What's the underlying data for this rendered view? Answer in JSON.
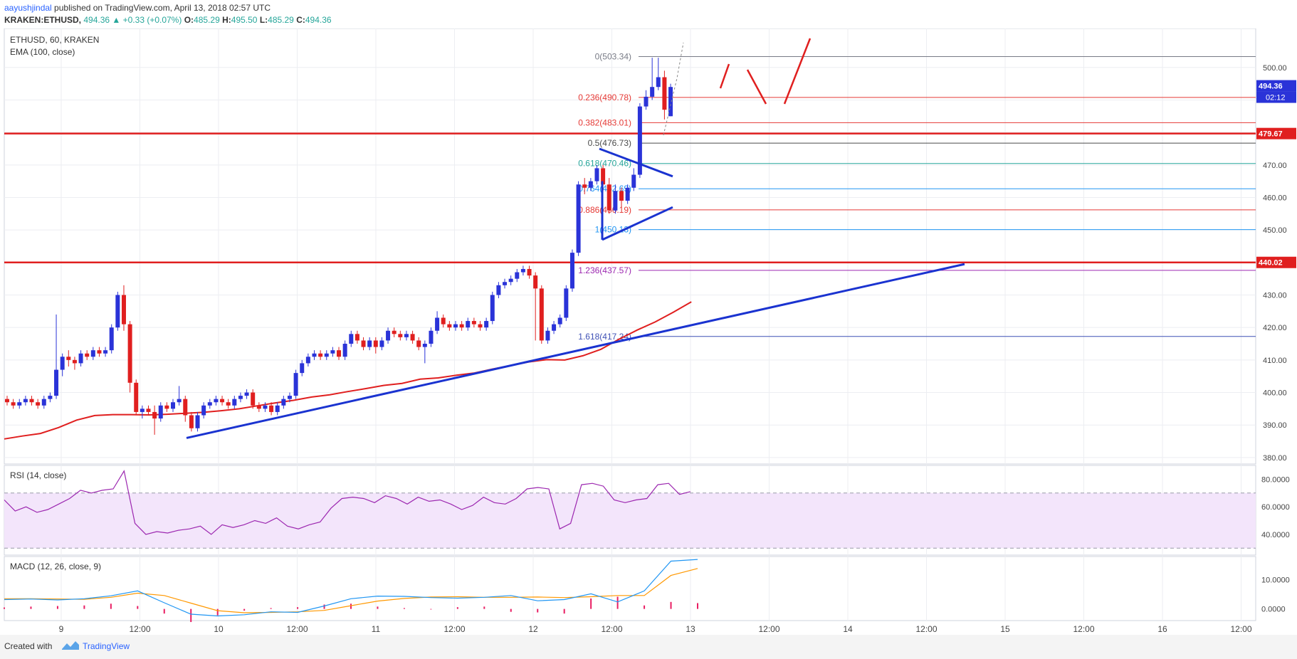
{
  "header": {
    "author": "aayushjindal",
    "published": " published on TradingView.com, April 13, 2018 02:57 UTC",
    "ticker": "KRAKEN:ETHUSD,",
    "price": "494.36",
    "change": "+0.33 (+0.07%)",
    "o_label": "O:",
    "o": "485.29",
    "h_label": "H:",
    "h": "495.50",
    "l_label": "L:",
    "l": "485.29",
    "c_label": "C:",
    "c": "494.36"
  },
  "footer": {
    "created": "Created with",
    "brand": "TradingView"
  },
  "colors": {
    "up": "#2a33d8",
    "down": "#e01f1f",
    "ema": "#e01f1f",
    "trend": "#1a33d0",
    "rsi": "#9c27b0",
    "macd": "#2196f3",
    "signal": "#ff9800",
    "hist": "#e91e63"
  },
  "chart_data": [
    {
      "type": "candlestick",
      "title": "ETHUSD, 60, KRAKEN",
      "indicator": "EMA (100, close)",
      "ylim": [
        378,
        512
      ],
      "y_ticks": [
        "380.00",
        "390.00",
        "400.00",
        "410.00",
        "420.00",
        "430.00",
        "440.00",
        "450.00",
        "460.00",
        "470.00",
        "480.00",
        "490.00",
        "500.00"
      ],
      "x_ticks": [
        "9",
        "12:00",
        "10",
        "12:00",
        "11",
        "12:00",
        "12",
        "12:00",
        "13",
        "12:00",
        "14",
        "12:00",
        "15",
        "12:00",
        "16",
        "12:00"
      ],
      "last_price": "494.36",
      "countdown": "02:12",
      "candles": [
        [
          398,
          397,
          399,
          396
        ],
        [
          397,
          396,
          398,
          395
        ],
        [
          396,
          397,
          398,
          395
        ],
        [
          397,
          398,
          399,
          396
        ],
        [
          398,
          397,
          399,
          396
        ],
        [
          397,
          396,
          398,
          395
        ],
        [
          396,
          398,
          399,
          395
        ],
        [
          398,
          399,
          400,
          397
        ],
        [
          399,
          407,
          424,
          398
        ],
        [
          407,
          411,
          412,
          405
        ],
        [
          411,
          410,
          413,
          408
        ],
        [
          410,
          409,
          411,
          407
        ],
        [
          409,
          412,
          413,
          408
        ],
        [
          412,
          411,
          413,
          410
        ],
        [
          411,
          413,
          414,
          410
        ],
        [
          413,
          412,
          414,
          411
        ],
        [
          412,
          413,
          414,
          411
        ],
        [
          413,
          420,
          421,
          412
        ],
        [
          420,
          430,
          431,
          419
        ],
        [
          430,
          421,
          433,
          419
        ],
        [
          421,
          403,
          422,
          400
        ],
        [
          403,
          394,
          404,
          393
        ],
        [
          394,
          395,
          396,
          392
        ],
        [
          395,
          394,
          396,
          393
        ],
        [
          394,
          392,
          396,
          387
        ],
        [
          392,
          396,
          397,
          391
        ],
        [
          396,
          395,
          397,
          394
        ],
        [
          395,
          397,
          398,
          394
        ],
        [
          397,
          398,
          402,
          396
        ],
        [
          398,
          393,
          399,
          391
        ],
        [
          393,
          389,
          394,
          388
        ],
        [
          389,
          393,
          394,
          388
        ],
        [
          393,
          396,
          397,
          392
        ],
        [
          396,
          397,
          398,
          395
        ],
        [
          397,
          398,
          399,
          396
        ],
        [
          398,
          397,
          399,
          396
        ],
        [
          397,
          396,
          398,
          395
        ],
        [
          396,
          398,
          399,
          395
        ],
        [
          398,
          399,
          400,
          397
        ],
        [
          399,
          400,
          401,
          398
        ],
        [
          400,
          396,
          401,
          395
        ],
        [
          396,
          395,
          397,
          394
        ],
        [
          395,
          396,
          397,
          394
        ],
        [
          396,
          394,
          397,
          393
        ],
        [
          394,
          396,
          397,
          393
        ],
        [
          396,
          398,
          399,
          395
        ],
        [
          398,
          399,
          400,
          397
        ],
        [
          399,
          406,
          407,
          398
        ],
        [
          406,
          409,
          410,
          405
        ],
        [
          409,
          411,
          412,
          408
        ],
        [
          411,
          412,
          413,
          410
        ],
        [
          412,
          411,
          413,
          410
        ],
        [
          411,
          412,
          413,
          410
        ],
        [
          412,
          413,
          414,
          411
        ],
        [
          413,
          411,
          414,
          410
        ],
        [
          411,
          415,
          416,
          410
        ],
        [
          415,
          418,
          419,
          414
        ],
        [
          418,
          416,
          419,
          415
        ],
        [
          416,
          414,
          417,
          413
        ],
        [
          414,
          416,
          417,
          413
        ],
        [
          416,
          414,
          417,
          412
        ],
        [
          414,
          416,
          417,
          413
        ],
        [
          416,
          419,
          420,
          415
        ],
        [
          419,
          418,
          420,
          417
        ],
        [
          418,
          417,
          419,
          416
        ],
        [
          417,
          418,
          419,
          416
        ],
        [
          418,
          416,
          419,
          415
        ],
        [
          416,
          414,
          417,
          413
        ],
        [
          414,
          415,
          416,
          409
        ],
        [
          415,
          419,
          420,
          414
        ],
        [
          419,
          423,
          425,
          418
        ],
        [
          423,
          421,
          424,
          420
        ],
        [
          421,
          420,
          422,
          419
        ],
        [
          420,
          421,
          422,
          419
        ],
        [
          421,
          420,
          422,
          419
        ],
        [
          420,
          422,
          423,
          419
        ],
        [
          422,
          421,
          423,
          420
        ],
        [
          421,
          420,
          422,
          419
        ],
        [
          420,
          422,
          423,
          419
        ],
        [
          422,
          430,
          431,
          421
        ],
        [
          430,
          433,
          434,
          429
        ],
        [
          433,
          434,
          435,
          432
        ],
        [
          434,
          435,
          436,
          433
        ],
        [
          435,
          437,
          438,
          434
        ],
        [
          437,
          438,
          439,
          436
        ],
        [
          438,
          436,
          439,
          435
        ],
        [
          436,
          432,
          437,
          416
        ],
        [
          432,
          416,
          433,
          415
        ],
        [
          416,
          419,
          420,
          415
        ],
        [
          419,
          421,
          422,
          418
        ],
        [
          421,
          423,
          424,
          420
        ],
        [
          423,
          432,
          433,
          422
        ],
        [
          432,
          443,
          444,
          431
        ],
        [
          443,
          464,
          465,
          442
        ],
        [
          464,
          463,
          466,
          461
        ],
        [
          463,
          465,
          466,
          462
        ],
        [
          465,
          469,
          470,
          464
        ],
        [
          469,
          464,
          470,
          462
        ],
        [
          464,
          456,
          466,
          455
        ],
        [
          456,
          462,
          464,
          455
        ],
        [
          462,
          459,
          463,
          457
        ],
        [
          459,
          463,
          464,
          458
        ],
        [
          463,
          467,
          469,
          462
        ],
        [
          467,
          488,
          489,
          466
        ],
        [
          488,
          491,
          493,
          487
        ],
        [
          491,
          494,
          503,
          490
        ],
        [
          494,
          497,
          503,
          493
        ],
        [
          497,
          487,
          499,
          484
        ],
        [
          485,
          494,
          495,
          485
        ]
      ],
      "ema": [
        385.7,
        386.6,
        387.4,
        389.2,
        391.5,
        392.9,
        393.2,
        393.2,
        393.1,
        393.3,
        393.6,
        393.9,
        394.4,
        395.0,
        395.9,
        396.8,
        397.6,
        398.6,
        399.3,
        400.3,
        401.2,
        402.2,
        402.8,
        404.1,
        404.5,
        405.3,
        406.0,
        407.2,
        408.3,
        409.4,
        410.1,
        410.0,
        411.3,
        413.3,
        416.4,
        419.2,
        421.7,
        424.7,
        427.9
      ],
      "trendlines": [
        {
          "from": [
            "10 -",
            386.0
          ],
          "to": [
            "14 12:00+",
            439.5
          ]
        },
        {
          "from": [
            "12 12:00",
            447
          ],
          "to": [
            "13 -",
            457
          ]
        },
        {
          "from": [
            "12 12:00-",
            475
          ],
          "to": [
            "13 -",
            466.5
          ]
        }
      ],
      "horizontal_levels": [
        {
          "value": 479.67,
          "label": "479.67"
        },
        {
          "value": 440.02,
          "label": "440.02"
        }
      ],
      "fibonacci": [
        {
          "ratio": "0",
          "value": 503.34,
          "label": "0(503.34)"
        },
        {
          "ratio": "0.236",
          "value": 490.78,
          "label": "0.236(490.78)"
        },
        {
          "ratio": "0.382",
          "value": 483.01,
          "label": "0.382(483.01)"
        },
        {
          "ratio": "0.5",
          "value": 476.73,
          "label": "0.5(476.73)"
        },
        {
          "ratio": "0.618",
          "value": 470.46,
          "label": "0.618(470.46)"
        },
        {
          "ratio": "0.764",
          "value": 462.69,
          "label": "0.764(462.69)"
        },
        {
          "ratio": "0.886",
          "value": 456.19,
          "label": "0.886(456.19)"
        },
        {
          "ratio": "1",
          "value": 450.13,
          "label": "1(450.13)"
        },
        {
          "ratio": "1.236",
          "value": 437.57,
          "label": "1.236(437.57)"
        },
        {
          "ratio": "1.618",
          "value": 417.24,
          "label": "1.618(417.24)"
        }
      ]
    },
    {
      "type": "line",
      "title": "RSI (14, close)",
      "ylim": [
        25,
        90
      ],
      "y_ticks": [
        "40.0000",
        "60.0000",
        "80.0000"
      ],
      "bands": [
        30,
        70
      ],
      "values": [
        65,
        57,
        60,
        56,
        58,
        62,
        66,
        72,
        70,
        72,
        73,
        86,
        48,
        40,
        42,
        41,
        43,
        44,
        46,
        40,
        47,
        45,
        47,
        50,
        48,
        52,
        46,
        44,
        47,
        49,
        59,
        66,
        67,
        66,
        63,
        68,
        66,
        62,
        67,
        64,
        65,
        62,
        58,
        61,
        67,
        63,
        62,
        66,
        73,
        74,
        73,
        44,
        48,
        76,
        77,
        75,
        65,
        63,
        65,
        66,
        76,
        77,
        69,
        71
      ]
    },
    {
      "type": "line",
      "title": "MACD (12, 26, close, 9)",
      "ylim": [
        -4,
        18
      ],
      "y_ticks": [
        "0.0000",
        "10.0000"
      ],
      "macd": [
        3.2,
        3.4,
        3.1,
        3.5,
        4.5,
        6.2,
        2.1,
        -1.8,
        -2.4,
        -2.0,
        -1.0,
        -1.2,
        1.0,
        3.5,
        4.4,
        4.3,
        3.9,
        3.7,
        4.0,
        4.6,
        2.8,
        3.2,
        5.2,
        2.4,
        6.2,
        16.4,
        17.0
      ],
      "signal": [
        3.5,
        3.5,
        3.4,
        3.3,
        4.0,
        5.4,
        4.6,
        2.0,
        -0.6,
        -1.3,
        -1.2,
        -1.0,
        -0.5,
        1.1,
        2.7,
        3.6,
        4.1,
        4.2,
        4.0,
        4.0,
        4.1,
        3.9,
        4.2,
        4.6,
        4.6,
        11.5,
        13.9
      ],
      "histogram": [
        0.5,
        0.8,
        1.0,
        1.2,
        1.8,
        1.0,
        -1.6,
        -4.5,
        -2.2,
        -0.6,
        0.3,
        0.6,
        1.5,
        1.8,
        0.8,
        0.3,
        -0.2,
        0.6,
        0.8,
        -1.0,
        -1.2,
        -1.6,
        3.6,
        4.2,
        1.2,
        2.4,
        2.0
      ]
    }
  ]
}
